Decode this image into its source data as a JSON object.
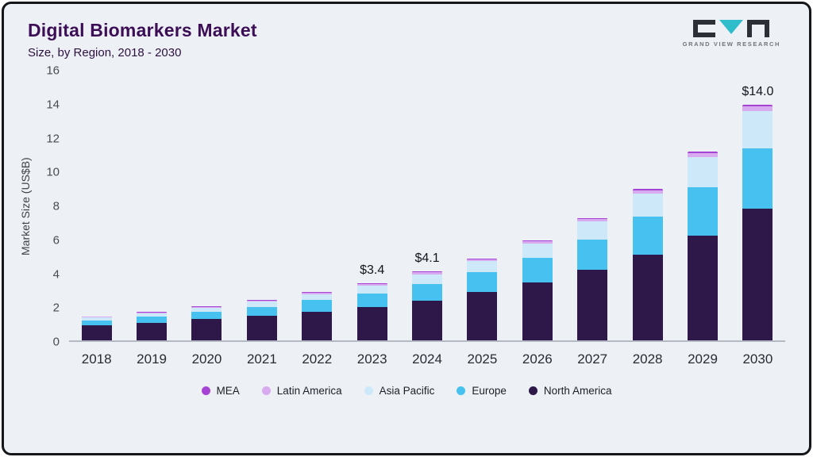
{
  "header": {
    "title": "Digital Biomarkers Market",
    "subtitle": "Size, by Region, 2018 - 2030",
    "logo_text": "GRAND VIEW RESEARCH"
  },
  "chart_data": {
    "type": "bar",
    "stacked": true,
    "title": "Digital Biomarkers Market Size, by Region, 2018 - 2030",
    "xlabel": "",
    "ylabel": "Market Size (US$B)",
    "ylim": [
      0,
      16
    ],
    "yticks": [
      0,
      2,
      4,
      6,
      8,
      10,
      12,
      14,
      16
    ],
    "grid": false,
    "legend_position": "bottom",
    "categories": [
      "2018",
      "2019",
      "2020",
      "2021",
      "2022",
      "2023",
      "2024",
      "2025",
      "2026",
      "2027",
      "2028",
      "2029",
      "2030"
    ],
    "series": [
      {
        "name": "North America",
        "color": "#2e184a",
        "values": [
          0.9,
          1.05,
          1.25,
          1.45,
          1.7,
          2.0,
          2.35,
          2.85,
          3.45,
          4.2,
          5.1,
          6.2,
          7.8
        ]
      },
      {
        "name": "Europe",
        "color": "#47c1f0",
        "values": [
          0.3,
          0.38,
          0.45,
          0.55,
          0.68,
          0.8,
          1.0,
          1.2,
          1.45,
          1.8,
          2.25,
          2.9,
          3.6
        ]
      },
      {
        "name": "Asia Pacific",
        "color": "#cde9f9",
        "values": [
          0.15,
          0.19,
          0.23,
          0.3,
          0.36,
          0.45,
          0.57,
          0.65,
          0.85,
          1.05,
          1.35,
          1.75,
          2.2
        ]
      },
      {
        "name": "Latin America",
        "color": "#d8aaf0",
        "values": [
          0.04,
          0.05,
          0.05,
          0.07,
          0.08,
          0.1,
          0.12,
          0.1,
          0.13,
          0.13,
          0.2,
          0.25,
          0.3
        ]
      },
      {
        "name": "MEA",
        "color": "#a743d4",
        "values": [
          0.02,
          0.03,
          0.03,
          0.04,
          0.04,
          0.05,
          0.06,
          0.05,
          0.07,
          0.07,
          0.1,
          0.1,
          0.1
        ]
      }
    ],
    "totals": [
      1.41,
      1.7,
      2.01,
      2.41,
      2.86,
      3.4,
      4.1,
      4.85,
      5.95,
      7.25,
      9.0,
      11.2,
      14.0
    ],
    "annotations": [
      {
        "category": "2023",
        "text": "$3.4"
      },
      {
        "category": "2024",
        "text": "$4.1"
      },
      {
        "category": "2030",
        "text": "$14.0"
      }
    ]
  },
  "legend": {
    "items": [
      {
        "label": "MEA",
        "color": "#a743d4"
      },
      {
        "label": "Latin America",
        "color": "#d8aaf0"
      },
      {
        "label": "Asia Pacific",
        "color": "#cde9f9"
      },
      {
        "label": "Europe",
        "color": "#47c1f0"
      },
      {
        "label": "North America",
        "color": "#2e184a"
      }
    ]
  }
}
